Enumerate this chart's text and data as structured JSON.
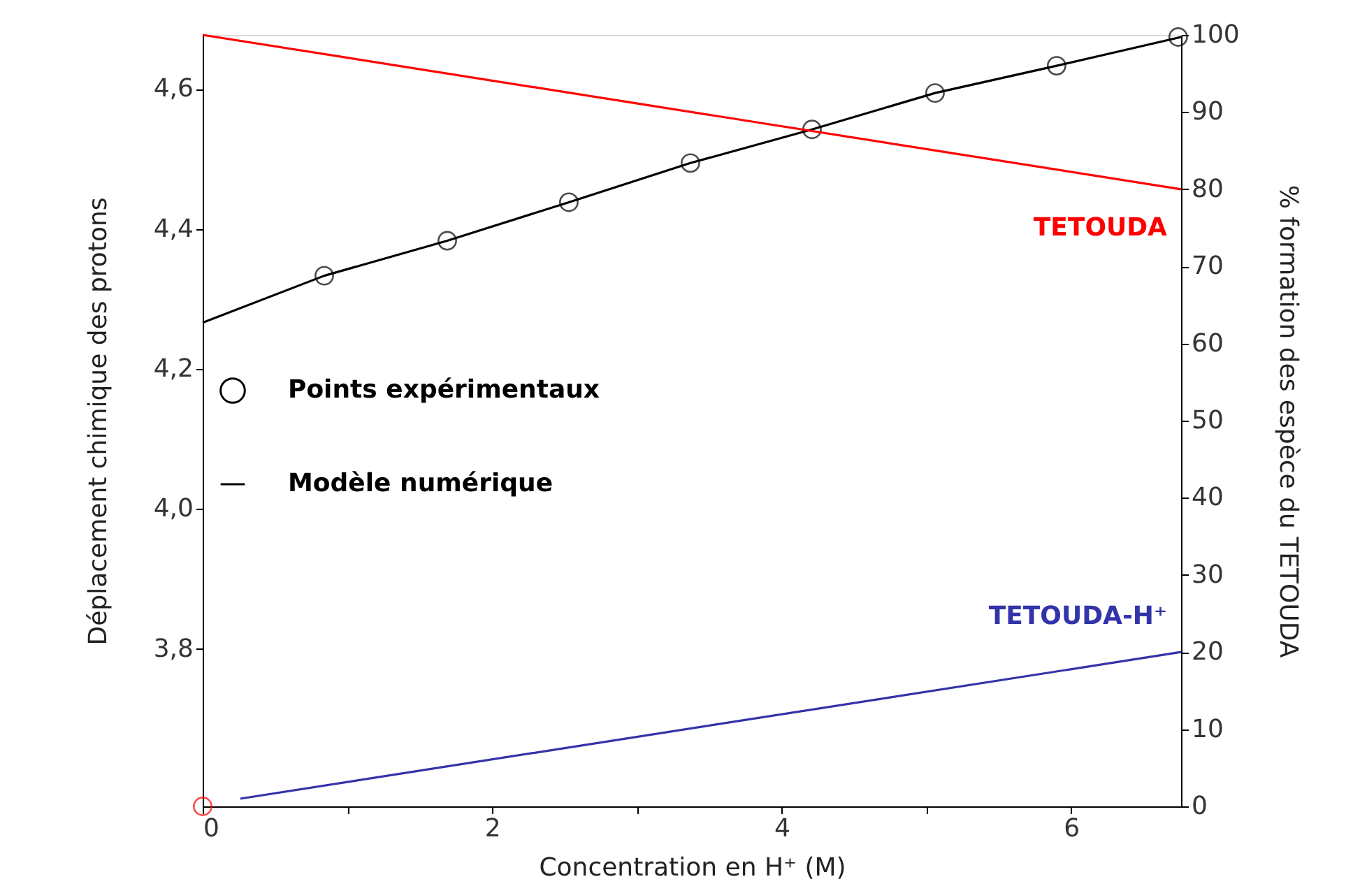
{
  "chart_data": {
    "type": "line",
    "xlabel": "Concentration en H⁺ (M)",
    "ylabel": "Déplacement chimique des protons",
    "y2label": "% formation des espèce du TETOUDA",
    "xlim": [
      0,
      6.76
    ],
    "ylim": [
      3.575,
      4.677
    ],
    "y2lim": [
      0,
      100
    ],
    "xticks": [
      0,
      {
        "value": 1,
        "label": null
      },
      2,
      {
        "value": 3,
        "label": null
      },
      4,
      {
        "value": 5,
        "label": null
      },
      6
    ],
    "yticks": [
      {
        "value": 3.8,
        "label": "3,8"
      },
      {
        "value": 4.0,
        "label": "4,0"
      },
      {
        "value": 4.2,
        "label": "4,2"
      },
      {
        "value": 4.4,
        "label": "4,4"
      },
      {
        "value": 4.6,
        "label": "4,6"
      }
    ],
    "y2ticks": [
      0,
      10,
      20,
      30,
      40,
      50,
      60,
      70,
      80,
      90,
      100
    ],
    "grid": false,
    "legend": "center left",
    "series": [
      {
        "name": "Points expérimentaux",
        "type": "scatter",
        "marker": "circle",
        "color": "#000000",
        "x": [
          0.84,
          1.69,
          2.53,
          3.37,
          4.21,
          5.06,
          5.9,
          6.74
        ],
        "values": [
          4.333,
          4.383,
          4.438,
          4.494,
          4.542,
          4.594,
          4.633,
          4.674
        ]
      },
      {
        "name": "Modèle numérique",
        "color": "#000000",
        "x": [
          0,
          0.84,
          1.69,
          2.53,
          3.37,
          4.21,
          5.06,
          5.9,
          6.76
        ],
        "values": [
          4.266,
          4.333,
          4.383,
          4.438,
          4.494,
          4.542,
          4.594,
          4.633,
          4.674
        ]
      },
      {
        "name": "TETOUDA",
        "axis": "y2",
        "color": "#ff0000",
        "x": [
          0,
          6.76
        ],
        "values": [
          100,
          80
        ]
      },
      {
        "name": "TETOUDA-H⁺",
        "axis": "y2",
        "color": "#3333aa",
        "x": [
          0.26,
          6.76
        ],
        "values": [
          1,
          20
        ]
      },
      {
        "type": "scatter",
        "marker": "circle",
        "axis": "y2",
        "color": "#ff0000",
        "x": [
          0
        ],
        "values": [
          0
        ]
      }
    ]
  }
}
